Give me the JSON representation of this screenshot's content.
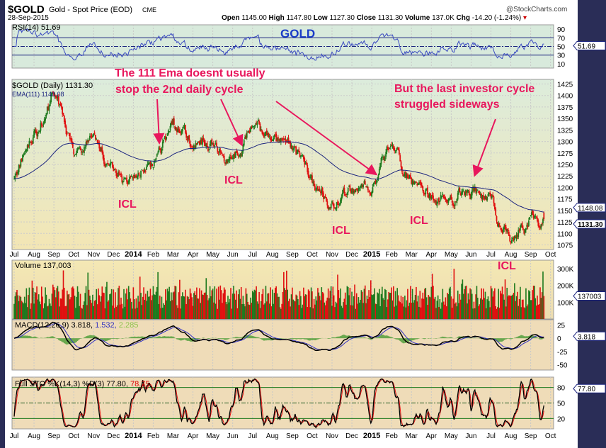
{
  "header": {
    "symbol": "$GOLD",
    "description": "Gold - Spot Price (EOD)",
    "exchange": "CME",
    "date": "28-Sep-2015",
    "watermark": "@StockCharts.com",
    "open_label": "Open",
    "open": "1145.00",
    "high_label": "High",
    "high": "1147.80",
    "low_label": "Low",
    "low": "1127.30",
    "close_label": "Close",
    "close": "1131.30",
    "volume_label": "Volume",
    "volume": "137.0K",
    "chg_label": "Chg",
    "chg": "-14.20 (-1.24%)"
  },
  "rsi": {
    "label": "RSI(14) 51.69",
    "value": "51.69",
    "ticks": [
      "90",
      "70",
      "50",
      "30",
      "10"
    ]
  },
  "price": {
    "label": "$GOLD (Daily) 1131.30",
    "ema_label": "EMA(111) 1148.08",
    "ema_value": "1148.08",
    "close_value": "1131.30",
    "ticks": [
      "1425",
      "1400",
      "1375",
      "1350",
      "1325",
      "1300",
      "1275",
      "1250",
      "1225",
      "1200",
      "1175",
      "1150",
      "1125",
      "1100",
      "1075"
    ]
  },
  "volume": {
    "label": "Volume 137,003",
    "value": "137003",
    "ticks": [
      "300K",
      "200K",
      "100K"
    ]
  },
  "macd": {
    "label": "MACD(12,26,9) 3.818,",
    "signal": "1.532,",
    "hist": "2.285",
    "value": "3.818",
    "ticks": [
      "25",
      "0",
      "-25",
      "-50"
    ]
  },
  "sto": {
    "label": "Full STO %K(14,3) %D(3) 77.80,",
    "d": "78.75",
    "value": "77.80",
    "ticks": [
      "80",
      "50",
      "20"
    ]
  },
  "months": [
    "Jul",
    "Aug",
    "Sep",
    "Oct",
    "Nov",
    "Dec",
    "2014",
    "Feb",
    "Mar",
    "Apr",
    "May",
    "Jun",
    "Jul",
    "Aug",
    "Sep",
    "Oct",
    "Nov",
    "Dec",
    "2015",
    "Feb",
    "Mar",
    "Apr",
    "May",
    "Jun",
    "Jul",
    "Aug",
    "Sep",
    "Oct"
  ],
  "annotations": {
    "title": "GOLD",
    "note1_line1": "The 111 Ema doesnt usually",
    "note1_line2": "stop the 2nd daily cycle",
    "note2_line1": "But the last  investor cycle",
    "note2_line2": "struggled  sideways",
    "icl": "ICL"
  },
  "colors": {
    "up": "#1e7a1e",
    "down": "#e01010",
    "ema": "#1a237e",
    "annotation": "#e8175d",
    "rsi_bg": "#d8eadc",
    "price_bg_top": "#dcecdc",
    "price_bg_bottom": "#f3e6b4",
    "indicator_bg": "#efdcb8"
  },
  "chart_data": {
    "type": "candlestick",
    "period": "daily",
    "x_range": [
      "Jul 2013",
      "Sep 2015"
    ],
    "y_range": [
      1065,
      1435
    ],
    "monthly_levels": [
      1230,
      1310,
      1400,
      1290,
      1320,
      1240,
      1205,
      1260,
      1340,
      1290,
      1300,
      1245,
      1330,
      1290,
      1290,
      1210,
      1170,
      1190,
      1190,
      1280,
      1210,
      1185,
      1185,
      1190,
      1170,
      1090,
      1130,
      1131.3
    ],
    "indicators": [
      "RSI(14)",
      "EMA(111)",
      "Volume",
      "MACD(12,26,9)",
      "Full STO %K(14,3) %D(3)"
    ]
  }
}
